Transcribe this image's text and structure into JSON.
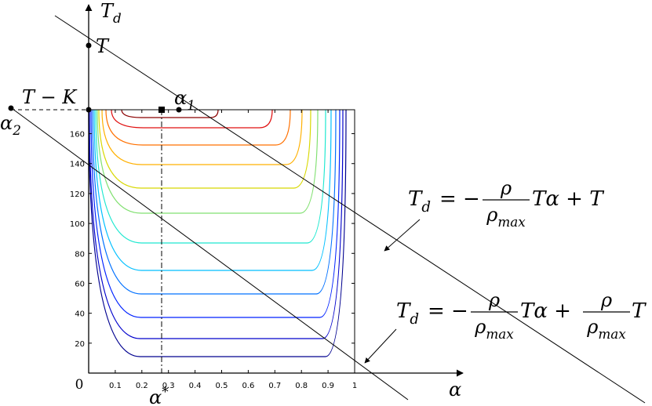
{
  "chart_data": {
    "type": "contour",
    "x_label": {
      "base": "α"
    },
    "y_label": {
      "base": "T",
      "sub": "d"
    },
    "xlim": [
      0,
      1
    ],
    "ylim": [
      0,
      176
    ],
    "xticks": [
      0,
      0.1,
      0.2,
      0.3,
      0.4,
      0.5,
      0.6,
      0.7,
      0.8,
      0.9,
      1
    ],
    "yticks": [
      20,
      40,
      60,
      80,
      100,
      120,
      140,
      160
    ],
    "annotations": {
      "T": {
        "base": "T"
      },
      "T_minus_K": {
        "base": "T − K"
      },
      "alpha1": {
        "base": "α",
        "sub": "1"
      },
      "alpha2": {
        "base": "α",
        "sub": "2"
      },
      "alpha_star": {
        "base": "α",
        "sup": "*"
      }
    },
    "equations": [
      {
        "lhs": {
          "base": "T",
          "sub": "d"
        },
        "op": "= −",
        "frac": {
          "num": "ρ",
          "den": {
            "base": "ρ",
            "sub": "max"
          }
        },
        "rest": "Tα + T"
      },
      {
        "lhs": {
          "base": "T",
          "sub": "d"
        },
        "op": "= −",
        "frac": {
          "num": "ρ",
          "den": {
            "base": "ρ",
            "sub": "max"
          }
        },
        "rest": "Tα +",
        "frac2": {
          "num": "ρ",
          "den": {
            "base": "ρ",
            "sub": "max"
          }
        },
        "tail": "T"
      }
    ]
  }
}
